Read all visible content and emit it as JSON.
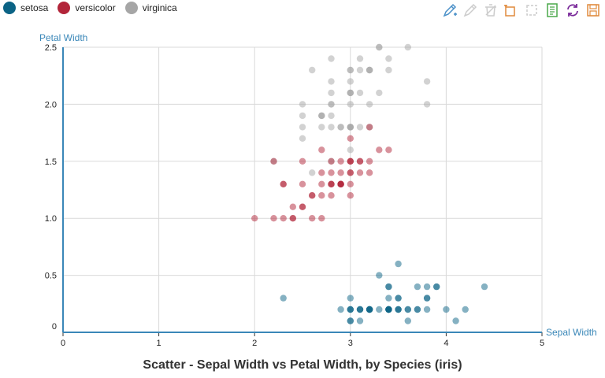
{
  "legend": [
    {
      "label": "setosa",
      "color": "#0b6385"
    },
    {
      "label": "versicolor",
      "color": "#b2253a"
    },
    {
      "label": "virginica",
      "color": "#a6a6a6"
    }
  ],
  "toolbar": [
    {
      "name": "draw-pen-icon",
      "color": "#4a90c8",
      "disabled": false
    },
    {
      "name": "edit-pen-icon",
      "color": "#cccccc",
      "disabled": true
    },
    {
      "name": "delete-icon",
      "color": "#cccccc",
      "disabled": true
    },
    {
      "name": "add-box-icon",
      "color": "#e08a3c",
      "disabled": false
    },
    {
      "name": "crop-icon",
      "color": "#cccccc",
      "disabled": true
    },
    {
      "name": "document-icon",
      "color": "#4aa84a",
      "disabled": false
    },
    {
      "name": "refresh-icon",
      "color": "#7a2a9a",
      "disabled": false
    },
    {
      "name": "save-icon",
      "color": "#e08a3c",
      "disabled": false
    }
  ],
  "chart_data": {
    "type": "scatter",
    "title": "Scatter - Sepal Width vs Petal Width, by Species (iris)",
    "xlabel": "Sepal Width",
    "ylabel": "Petal Width",
    "xlim": [
      0,
      5
    ],
    "ylim": [
      0,
      2.5
    ],
    "xticks": [
      "0",
      "1",
      "2",
      "3",
      "4",
      "5"
    ],
    "yticks": [
      "0",
      "0.5",
      "1.0",
      "1.5",
      "2.0",
      "2.5"
    ],
    "grid": true,
    "legend_position": "top-left",
    "series": [
      {
        "name": "setosa",
        "color": "#0b6385",
        "points": [
          [
            3.5,
            0.2
          ],
          [
            3.0,
            0.2
          ],
          [
            3.2,
            0.2
          ],
          [
            3.1,
            0.2
          ],
          [
            3.6,
            0.2
          ],
          [
            3.9,
            0.4
          ],
          [
            3.4,
            0.3
          ],
          [
            3.4,
            0.2
          ],
          [
            2.9,
            0.2
          ],
          [
            3.1,
            0.1
          ],
          [
            3.7,
            0.2
          ],
          [
            3.4,
            0.2
          ],
          [
            3.0,
            0.1
          ],
          [
            3.0,
            0.1
          ],
          [
            4.0,
            0.2
          ],
          [
            4.4,
            0.4
          ],
          [
            3.9,
            0.4
          ],
          [
            3.5,
            0.3
          ],
          [
            3.8,
            0.3
          ],
          [
            3.8,
            0.3
          ],
          [
            3.4,
            0.2
          ],
          [
            3.7,
            0.4
          ],
          [
            3.6,
            0.2
          ],
          [
            3.3,
            0.5
          ],
          [
            3.4,
            0.2
          ],
          [
            3.0,
            0.2
          ],
          [
            3.4,
            0.4
          ],
          [
            3.5,
            0.2
          ],
          [
            3.4,
            0.2
          ],
          [
            3.2,
            0.2
          ],
          [
            3.1,
            0.2
          ],
          [
            3.4,
            0.4
          ],
          [
            4.1,
            0.1
          ],
          [
            4.2,
            0.2
          ],
          [
            3.1,
            0.2
          ],
          [
            3.2,
            0.2
          ],
          [
            3.5,
            0.2
          ],
          [
            3.6,
            0.1
          ],
          [
            3.0,
            0.2
          ],
          [
            3.4,
            0.2
          ],
          [
            3.5,
            0.3
          ],
          [
            2.3,
            0.3
          ],
          [
            3.2,
            0.2
          ],
          [
            3.5,
            0.6
          ],
          [
            3.8,
            0.4
          ],
          [
            3.0,
            0.3
          ],
          [
            3.8,
            0.2
          ],
          [
            3.2,
            0.2
          ],
          [
            3.7,
            0.2
          ],
          [
            3.3,
            0.2
          ]
        ]
      },
      {
        "name": "versicolor",
        "color": "#b2253a",
        "points": [
          [
            3.2,
            1.4
          ],
          [
            3.2,
            1.5
          ],
          [
            3.1,
            1.5
          ],
          [
            2.3,
            1.3
          ],
          [
            2.8,
            1.5
          ],
          [
            2.8,
            1.3
          ],
          [
            3.3,
            1.6
          ],
          [
            2.4,
            1.0
          ],
          [
            2.9,
            1.3
          ],
          [
            2.7,
            1.4
          ],
          [
            2.0,
            1.0
          ],
          [
            3.0,
            1.5
          ],
          [
            2.2,
            1.0
          ],
          [
            2.9,
            1.4
          ],
          [
            2.9,
            1.3
          ],
          [
            3.1,
            1.4
          ],
          [
            3.0,
            1.5
          ],
          [
            2.7,
            1.0
          ],
          [
            2.2,
            1.5
          ],
          [
            2.5,
            1.1
          ],
          [
            3.2,
            1.8
          ],
          [
            2.8,
            1.3
          ],
          [
            2.5,
            1.5
          ],
          [
            2.8,
            1.2
          ],
          [
            2.9,
            1.3
          ],
          [
            3.0,
            1.4
          ],
          [
            2.8,
            1.4
          ],
          [
            3.0,
            1.7
          ],
          [
            2.9,
            1.5
          ],
          [
            2.6,
            1.0
          ],
          [
            2.4,
            1.1
          ],
          [
            2.4,
            1.0
          ],
          [
            2.7,
            1.2
          ],
          [
            2.7,
            1.6
          ],
          [
            3.0,
            1.5
          ],
          [
            3.4,
            1.6
          ],
          [
            3.1,
            1.5
          ],
          [
            2.3,
            1.3
          ],
          [
            3.0,
            1.3
          ],
          [
            2.5,
            1.3
          ],
          [
            2.6,
            1.2
          ],
          [
            3.0,
            1.4
          ],
          [
            2.6,
            1.2
          ],
          [
            2.3,
            1.0
          ],
          [
            2.7,
            1.3
          ],
          [
            3.0,
            1.2
          ],
          [
            2.9,
            1.3
          ],
          [
            2.9,
            1.3
          ],
          [
            2.5,
            1.1
          ],
          [
            2.8,
            1.3
          ]
        ]
      },
      {
        "name": "virginica",
        "color": "#a6a6a6",
        "points": [
          [
            3.3,
            2.5
          ],
          [
            2.7,
            1.9
          ],
          [
            3.0,
            2.1
          ],
          [
            2.9,
            1.8
          ],
          [
            3.0,
            2.2
          ],
          [
            3.0,
            2.1
          ],
          [
            2.5,
            1.7
          ],
          [
            2.9,
            1.8
          ],
          [
            2.5,
            1.8
          ],
          [
            3.6,
            2.5
          ],
          [
            3.2,
            2.0
          ],
          [
            2.7,
            1.9
          ],
          [
            3.0,
            2.1
          ],
          [
            2.5,
            2.0
          ],
          [
            2.8,
            2.4
          ],
          [
            3.2,
            2.3
          ],
          [
            3.0,
            1.8
          ],
          [
            3.8,
            2.2
          ],
          [
            2.6,
            2.3
          ],
          [
            2.2,
            1.5
          ],
          [
            3.2,
            2.3
          ],
          [
            2.8,
            2.0
          ],
          [
            2.8,
            2.0
          ],
          [
            2.7,
            1.8
          ],
          [
            3.3,
            2.1
          ],
          [
            3.2,
            1.8
          ],
          [
            2.8,
            1.8
          ],
          [
            3.0,
            1.8
          ],
          [
            2.8,
            2.1
          ],
          [
            3.0,
            1.6
          ],
          [
            2.8,
            1.9
          ],
          [
            3.8,
            2.0
          ],
          [
            2.8,
            2.2
          ],
          [
            2.8,
            1.5
          ],
          [
            2.6,
            1.4
          ],
          [
            3.0,
            2.3
          ],
          [
            3.4,
            2.4
          ],
          [
            3.1,
            1.8
          ],
          [
            3.0,
            1.8
          ],
          [
            3.1,
            2.1
          ],
          [
            3.1,
            2.4
          ],
          [
            3.1,
            2.3
          ],
          [
            2.7,
            1.9
          ],
          [
            3.2,
            2.3
          ],
          [
            3.3,
            2.5
          ],
          [
            3.0,
            2.3
          ],
          [
            2.5,
            1.9
          ],
          [
            3.0,
            2.0
          ],
          [
            3.4,
            2.3
          ],
          [
            3.0,
            1.8
          ]
        ]
      }
    ]
  }
}
